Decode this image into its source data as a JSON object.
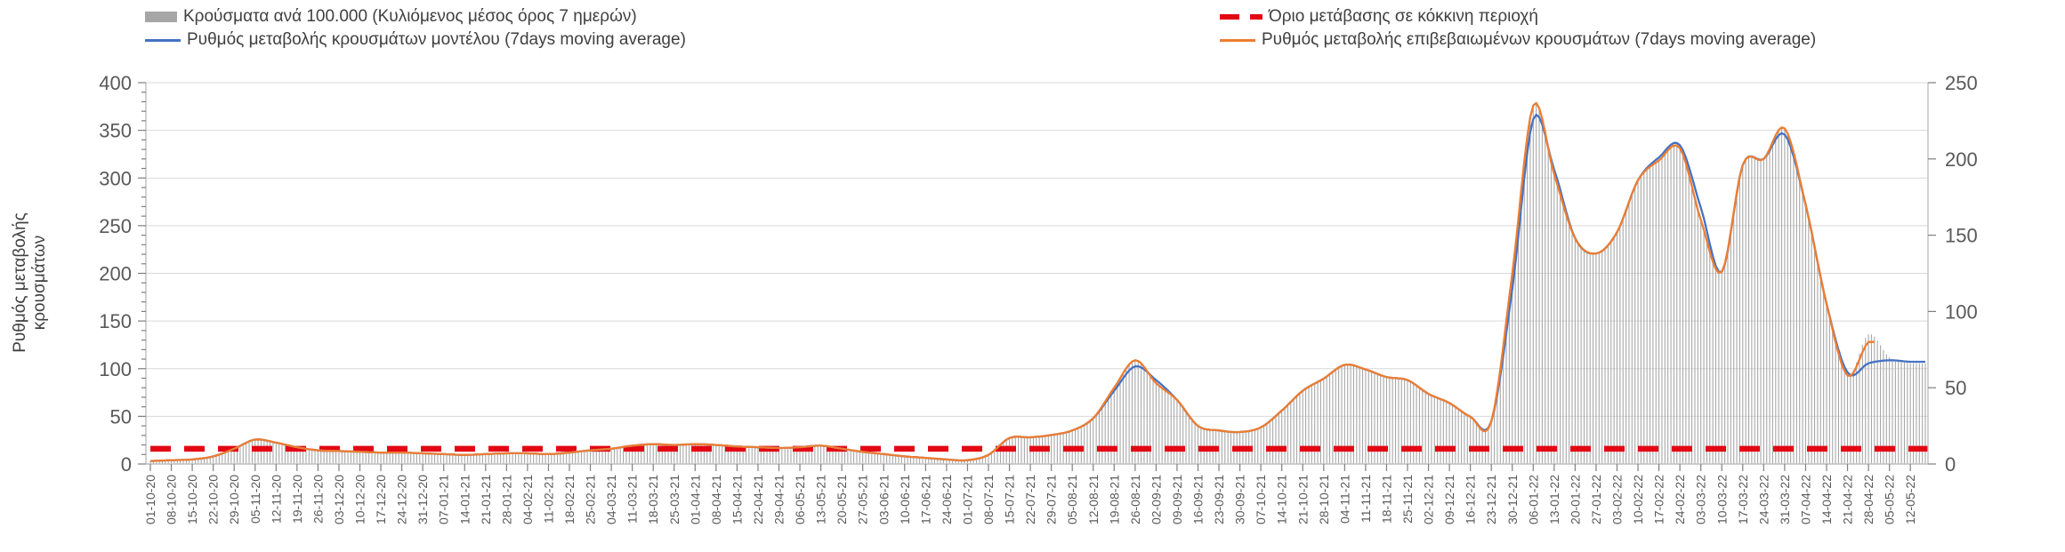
{
  "legend": {
    "cases": "Κρούσματα ανά 100.000 (Κυλιόμενος μέσος όρος 7 ημερών)",
    "model": "Ρυθμός μεταβολής κρουσμάτων μοντέλου (7days moving average)",
    "threshold": "Όριο μετάβασης σε κόκκινη περιοχή",
    "confirmed": "Ρυθμός μεταβολής επιβεβαιωμένων κρουσμάτων (7days moving average)"
  },
  "y_axis_title": "Ρυθμός μεταβολής κρουσμάτων",
  "colors": {
    "bars": "#a8a8a8",
    "model_line": "#4472c4",
    "confirmed_line": "#ed7d31",
    "threshold_line": "#e30613",
    "grid": "#d9d9d9",
    "axis": "#bfbfbf",
    "tick_text": "#595959",
    "legend_text": "#404040"
  },
  "chart_data": {
    "type": "line",
    "title": "",
    "xlabel": "",
    "ylabel": "Ρυθμός μεταβολής κρουσμάτων",
    "grid": true,
    "legend_position": "top",
    "left_axis": {
      "min": 0,
      "max": 400,
      "step": 50,
      "minor_step": 10
    },
    "right_axis": {
      "min": 0,
      "max": 250,
      "step": 50
    },
    "note": "Bars (cases per 100k, 7-day rolling mean) are daily and read on the right axis; rate-of-change lines read on the left axis (left value = 1.6 x right value at equal pixel height). Weekly anchor values below are in right-axis units.",
    "x": [
      "01-10-20",
      "08-10-20",
      "15-10-20",
      "22-10-20",
      "29-10-20",
      "05-11-20",
      "12-11-20",
      "19-11-20",
      "26-11-20",
      "03-12-20",
      "10-12-20",
      "17-12-20",
      "24-12-20",
      "31-12-20",
      "07-01-21",
      "14-01-21",
      "21-01-21",
      "28-01-21",
      "04-02-21",
      "11-02-21",
      "18-02-21",
      "25-02-21",
      "04-03-21",
      "11-03-21",
      "18-03-21",
      "25-03-21",
      "01-04-21",
      "08-04-21",
      "15-04-21",
      "22-04-21",
      "29-04-21",
      "06-05-21",
      "13-05-21",
      "20-05-21",
      "27-05-21",
      "03-06-21",
      "10-06-21",
      "17-06-21",
      "24-06-21",
      "01-07-21",
      "08-07-21",
      "15-07-21",
      "22-07-21",
      "29-07-21",
      "05-08-21",
      "12-08-21",
      "19-08-21",
      "26-08-21",
      "02-09-21",
      "09-09-21",
      "16-09-21",
      "23-09-21",
      "30-09-21",
      "07-10-21",
      "14-10-21",
      "21-10-21",
      "28-10-21",
      "04-11-21",
      "11-11-21",
      "18-11-21",
      "25-11-21",
      "02-12-21",
      "09-12-21",
      "16-12-21",
      "23-12-21",
      "30-12-21",
      "06-01-22",
      "13-01-22",
      "20-01-22",
      "27-01-22",
      "03-02-22",
      "10-02-22",
      "17-02-22",
      "24-02-22",
      "03-03-22",
      "10-03-22",
      "17-03-22",
      "24-03-22",
      "31-03-22",
      "07-04-22",
      "14-04-22",
      "21-04-22",
      "28-04-22",
      "05-05-22",
      "12-05-22"
    ],
    "series": [
      {
        "name": "Κρούσματα ανά 100.000 (Κυλιόμενος μέσος όρος 7 ημερών)",
        "style": "bar",
        "axis": "right",
        "values": [
          2,
          2.5,
          3,
          5,
          10,
          16,
          14,
          11,
          9,
          8.5,
          8,
          7.5,
          7.5,
          7,
          6.5,
          6,
          6.5,
          7,
          7,
          6.5,
          7.5,
          9,
          10,
          12,
          13,
          12.5,
          13,
          12.5,
          11.5,
          11,
          10.5,
          11,
          12,
          10,
          8,
          6.5,
          5,
          4,
          3,
          2.5,
          6,
          17,
          17.5,
          19,
          22,
          30,
          50,
          68,
          53,
          42,
          25,
          22,
          21,
          24,
          35,
          48,
          56,
          65,
          62,
          57,
          55,
          46,
          40,
          31,
          28,
          125,
          235,
          190,
          148,
          138,
          152,
          186,
          199,
          207,
          160,
          126,
          196,
          200,
          220,
          170,
          105,
          58,
          85,
          70,
          66
        ]
      },
      {
        "name": "Ρυθμός μεταβολής επιβεβαιωμένων κρουσμάτων (7days moving average)",
        "style": "line",
        "axis": "left",
        "color": "#ed7d31",
        "values": [
          2,
          2.5,
          3,
          5,
          10,
          16,
          14,
          11,
          9,
          8.5,
          8,
          7.5,
          7.5,
          7,
          6.5,
          6,
          6.5,
          7,
          7,
          6.5,
          7.5,
          9,
          10,
          12,
          13,
          12.5,
          13,
          12.5,
          11.5,
          11,
          10.5,
          11,
          12,
          10,
          8,
          6.5,
          5,
          4,
          3,
          2.5,
          6,
          17,
          17.5,
          19,
          22,
          30,
          50,
          68,
          53,
          42,
          25,
          22,
          21,
          24,
          35,
          48,
          56,
          65,
          62,
          57,
          55,
          46,
          40,
          31,
          28,
          125,
          235,
          190,
          148,
          138,
          152,
          186,
          199,
          207,
          160,
          126,
          196,
          200,
          220,
          170,
          105,
          58,
          80,
          null,
          null
        ]
      },
      {
        "name": "Ρυθμός μεταβολής κρουσμάτων μοντέλου (7days moving average)",
        "style": "line",
        "axis": "left",
        "color": "#4472c4",
        "values": [
          2,
          2.5,
          3,
          5,
          10,
          16,
          14,
          11,
          9,
          8.5,
          8,
          7.5,
          7.5,
          7,
          6.5,
          6,
          6.5,
          7,
          7,
          6.5,
          7.5,
          9,
          10,
          12,
          13,
          12.5,
          13,
          12.5,
          11.5,
          11,
          10.5,
          11,
          12,
          10,
          8,
          6.5,
          5,
          4,
          3,
          2.5,
          6,
          17,
          17.5,
          19,
          22,
          30,
          48,
          64,
          55,
          42,
          25,
          22,
          21,
          24,
          35,
          48,
          56,
          65,
          62,
          57,
          55,
          46,
          40,
          31,
          28,
          115,
          226,
          193,
          148,
          138,
          152,
          186,
          201,
          209,
          168,
          126,
          196,
          200,
          216,
          170,
          105,
          60,
          66,
          68,
          67
        ]
      },
      {
        "name": "Όριο μετάβασης σε κόκκινη περιοχή",
        "style": "dashed-threshold",
        "color": "#e30613",
        "value_right_axis": 10,
        "value_left_axis": 16
      }
    ]
  }
}
